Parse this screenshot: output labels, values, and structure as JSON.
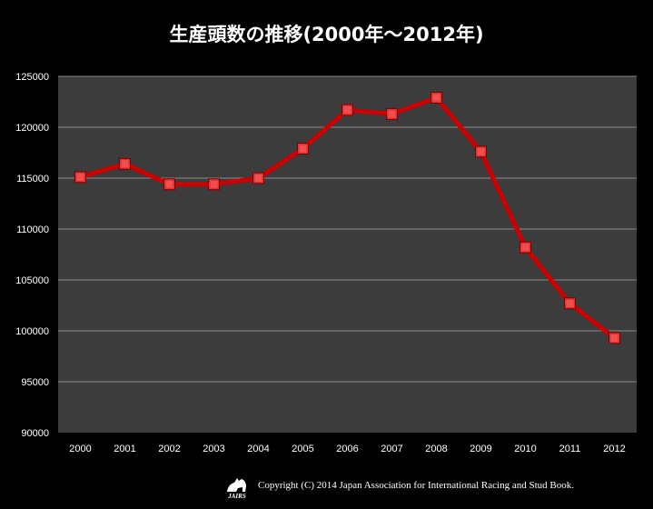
{
  "chart_data": {
    "type": "line",
    "title": "生産頭数の推移(2000年〜2012年)",
    "x": [
      "2000",
      "2001",
      "2002",
      "2003",
      "2004",
      "2005",
      "2006",
      "2007",
      "2008",
      "2009",
      "2010",
      "2011",
      "2012"
    ],
    "series": [
      {
        "values": [
          115100,
          116400,
          114400,
          114400,
          115000,
          117900,
          121700,
          121300,
          122900,
          117600,
          108200,
          102700,
          99300
        ]
      }
    ],
    "ylim": [
      90000,
      125000
    ],
    "yticks": [
      90000,
      95000,
      100000,
      105000,
      110000,
      115000,
      120000,
      125000
    ],
    "grid": true,
    "colors": {
      "plot_bg": "#3c3c3c",
      "line": "#cc0000",
      "marker": "#e03030",
      "grid": "#8a8a8a"
    }
  },
  "footer": {
    "logo_text": "JAIRS",
    "copyright": "Copyright (C) 2014 Japan Association for International Racing and Stud Book."
  }
}
